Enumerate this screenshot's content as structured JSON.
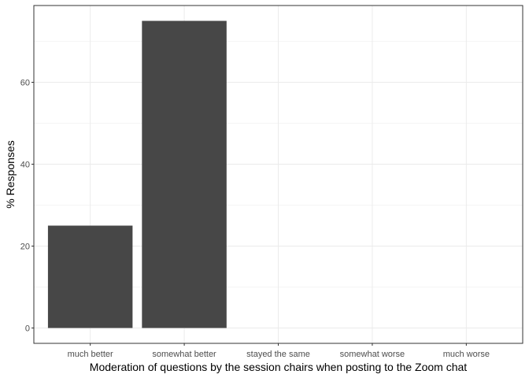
{
  "chart_data": {
    "type": "bar",
    "title": "",
    "categories": [
      "much better",
      "somewhat better",
      "stayed the same",
      "somewhat worse",
      "much worse"
    ],
    "values": [
      25,
      75,
      0,
      0,
      0
    ],
    "xlabel": "Moderation of questions by the session chairs when posting to the Zoom chat",
    "ylabel": "% Responses",
    "ylim": [
      -3.75,
      78.75
    ],
    "yticks": [
      0,
      20,
      40,
      60
    ],
    "grid": true,
    "bar_color": "#474747"
  },
  "colors": {
    "background": "#ffffff",
    "panel_border": "#333333",
    "grid_major": "#ebebeb",
    "grid_minor": "#f5f5f5",
    "tick_text": "#4d4d4d"
  }
}
